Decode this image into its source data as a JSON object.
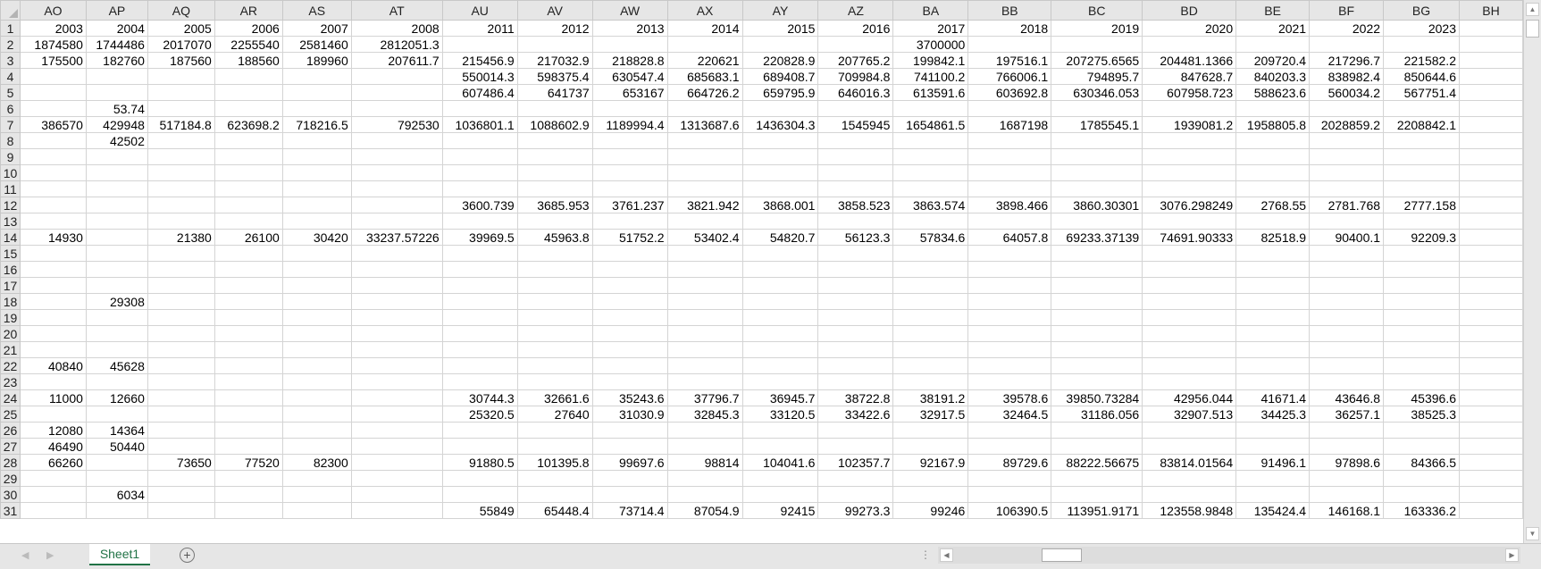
{
  "columns": [
    "AO",
    "AP",
    "AQ",
    "AR",
    "AS",
    "AT",
    "AU",
    "AV",
    "AW",
    "AX",
    "AY",
    "AZ",
    "BA",
    "BB",
    "BC",
    "BD",
    "BE",
    "BF",
    "BG",
    "BH"
  ],
  "rows": [
    {
      "n": "1",
      "cells": [
        "2003",
        "2004",
        "2005",
        "2006",
        "2007",
        "2008",
        "2011",
        "2012",
        "2013",
        "2014",
        "2015",
        "2016",
        "2017",
        "2018",
        "2019",
        "2020",
        "2021",
        "2022",
        "2023",
        ""
      ]
    },
    {
      "n": "2",
      "cells": [
        "1874580",
        "1744486",
        "2017070",
        "2255540",
        "2581460",
        "2812051.3",
        "",
        "",
        "",
        "",
        "",
        "",
        "3700000",
        "",
        "",
        "",
        "",
        "",
        "",
        ""
      ]
    },
    {
      "n": "3",
      "cells": [
        "175500",
        "182760",
        "187560",
        "188560",
        "189960",
        "207611.7",
        "215456.9",
        "217032.9",
        "218828.8",
        "220621",
        "220828.9",
        "207765.2",
        "199842.1",
        "197516.1",
        "207275.6565",
        "204481.1366",
        "209720.4",
        "217296.7",
        "221582.2",
        ""
      ]
    },
    {
      "n": "4",
      "cells": [
        "",
        "",
        "",
        "",
        "",
        "",
        "550014.3",
        "598375.4",
        "630547.4",
        "685683.1",
        "689408.7",
        "709984.8",
        "741100.2",
        "766006.1",
        "794895.7",
        "847628.7",
        "840203.3",
        "838982.4",
        "850644.6",
        ""
      ]
    },
    {
      "n": "5",
      "cells": [
        "",
        "",
        "",
        "",
        "",
        "",
        "607486.4",
        "641737",
        "653167",
        "664726.2",
        "659795.9",
        "646016.3",
        "613591.6",
        "603692.8",
        "630346.053",
        "607958.723",
        "588623.6",
        "560034.2",
        "567751.4",
        ""
      ]
    },
    {
      "n": "6",
      "cells": [
        "",
        "53.74",
        "",
        "",
        "",
        "",
        "",
        "",
        "",
        "",
        "",
        "",
        "",
        "",
        "",
        "",
        "",
        "",
        "",
        ""
      ]
    },
    {
      "n": "7",
      "cells": [
        "386570",
        "429948",
        "517184.8",
        "623698.2",
        "718216.5",
        "792530",
        "1036801.1",
        "1088602.9",
        "1189994.4",
        "1313687.6",
        "1436304.3",
        "1545945",
        "1654861.5",
        "1687198",
        "1785545.1",
        "1939081.2",
        "1958805.8",
        "2028859.2",
        "2208842.1",
        ""
      ]
    },
    {
      "n": "8",
      "cells": [
        "",
        "42502",
        "",
        "",
        "",
        "",
        "",
        "",
        "",
        "",
        "",
        "",
        "",
        "",
        "",
        "",
        "",
        "",
        "",
        ""
      ]
    },
    {
      "n": "9",
      "cells": []
    },
    {
      "n": "10",
      "cells": []
    },
    {
      "n": "11",
      "cells": []
    },
    {
      "n": "12",
      "cells": [
        "",
        "",
        "",
        "",
        "",
        "",
        "3600.739",
        "3685.953",
        "3761.237",
        "3821.942",
        "3868.001",
        "3858.523",
        "3863.574",
        "3898.466",
        "3860.30301",
        "3076.298249",
        "2768.55",
        "2781.768",
        "2777.158",
        ""
      ]
    },
    {
      "n": "13",
      "cells": []
    },
    {
      "n": "14",
      "cells": [
        "14930",
        "",
        "21380",
        "26100",
        "30420",
        "33237.57226",
        "39969.5",
        "45963.8",
        "51752.2",
        "53402.4",
        "54820.7",
        "56123.3",
        "57834.6",
        "64057.8",
        "69233.37139",
        "74691.90333",
        "82518.9",
        "90400.1",
        "92209.3",
        ""
      ]
    },
    {
      "n": "15",
      "cells": []
    },
    {
      "n": "16",
      "cells": []
    },
    {
      "n": "17",
      "cells": []
    },
    {
      "n": "18",
      "cells": [
        "",
        "29308"
      ]
    },
    {
      "n": "19",
      "cells": []
    },
    {
      "n": "20",
      "cells": []
    },
    {
      "n": "21",
      "cells": []
    },
    {
      "n": "22",
      "cells": [
        "40840",
        "45628"
      ]
    },
    {
      "n": "23",
      "cells": []
    },
    {
      "n": "24",
      "cells": [
        "11000",
        "12660",
        "",
        "",
        "",
        "",
        "30744.3",
        "32661.6",
        "35243.6",
        "37796.7",
        "36945.7",
        "38722.8",
        "38191.2",
        "39578.6",
        "39850.73284",
        "42956.044",
        "41671.4",
        "43646.8",
        "45396.6",
        ""
      ]
    },
    {
      "n": "25",
      "cells": [
        "",
        "",
        "",
        "",
        "",
        "",
        "25320.5",
        "27640",
        "31030.9",
        "32845.3",
        "33120.5",
        "33422.6",
        "32917.5",
        "32464.5",
        "31186.056",
        "32907.513",
        "34425.3",
        "36257.1",
        "38525.3",
        ""
      ]
    },
    {
      "n": "26",
      "cells": [
        "12080",
        "14364"
      ]
    },
    {
      "n": "27",
      "cells": [
        "46490",
        "50440"
      ]
    },
    {
      "n": "28",
      "cells": [
        "66260",
        "",
        "73650",
        "77520",
        "82300",
        "",
        "91880.5",
        "101395.8",
        "99697.6",
        "98814",
        "104041.6",
        "102357.7",
        "92167.9",
        "89729.6",
        "88222.56675",
        "83814.01564",
        "91496.1",
        "97898.6",
        "84366.5",
        ""
      ]
    },
    {
      "n": "29",
      "cells": []
    },
    {
      "n": "30",
      "cells": [
        "",
        "6034"
      ]
    },
    {
      "n": "31",
      "cells": [
        "",
        "",
        "",
        "",
        "",
        "",
        "55849",
        "65448.4",
        "73714.4",
        "87054.9",
        "92415",
        "99273.3",
        "99246",
        "106390.5",
        "113951.9171",
        "123558.9848",
        "135424.4",
        "146168.1",
        "163336.2",
        ""
      ]
    }
  ],
  "sheet_tabs": [
    {
      "label": "Sheet1",
      "active": true
    }
  ],
  "icons": {
    "add_sheet": "plus-circle-icon",
    "nav_prev": "triangle-left-icon",
    "nav_next": "triangle-right-icon",
    "scroll_up": "triangle-up-icon",
    "scroll_down": "triangle-down-icon",
    "scroll_right": "triangle-right-icon",
    "tab_options": "vertical-dots-icon"
  },
  "colors": {
    "accent": "#217346",
    "header_bg": "#e6e6e6",
    "gridline": "#d4d4d4"
  }
}
